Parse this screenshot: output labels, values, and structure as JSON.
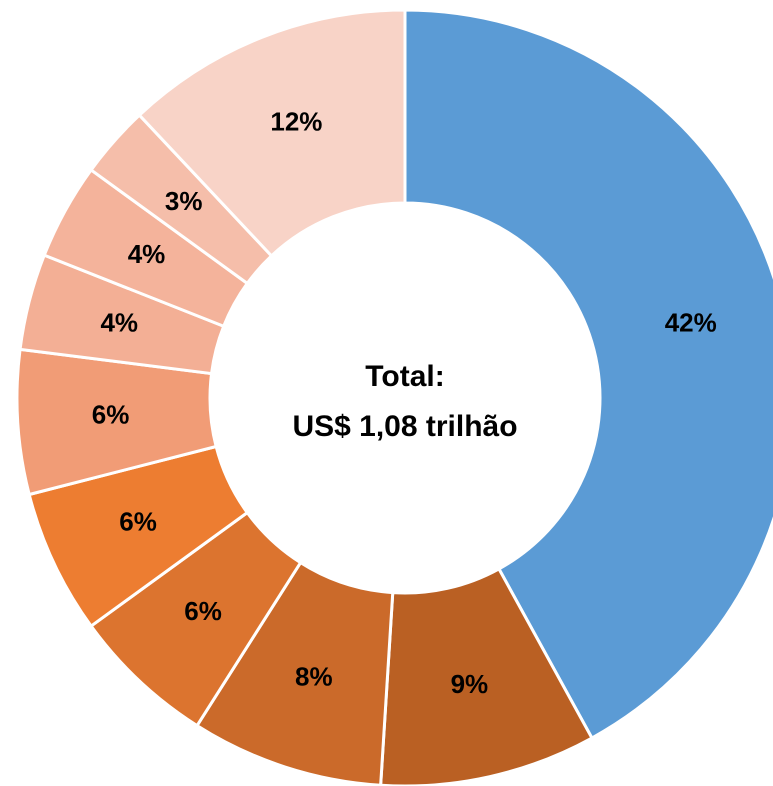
{
  "chart_data": {
    "type": "donut",
    "values": [
      42,
      9,
      8,
      6,
      6,
      6,
      4,
      4,
      3,
      12
    ],
    "value_labels": [
      "42%",
      "9%",
      "8%",
      "6%",
      "6%",
      "6%",
      "4%",
      "4%",
      "3%",
      "12%"
    ],
    "colors": [
      "#5B9BD5",
      "#BA6023",
      "#CB6A2A",
      "#DC742F",
      "#ED7D31",
      "#F19C76",
      "#F3AF95",
      "#F4B39B",
      "#F5BEAA",
      "#F8D3C7"
    ],
    "center_text": [
      "Total:",
      "US$ 1,08 trilhão"
    ]
  }
}
